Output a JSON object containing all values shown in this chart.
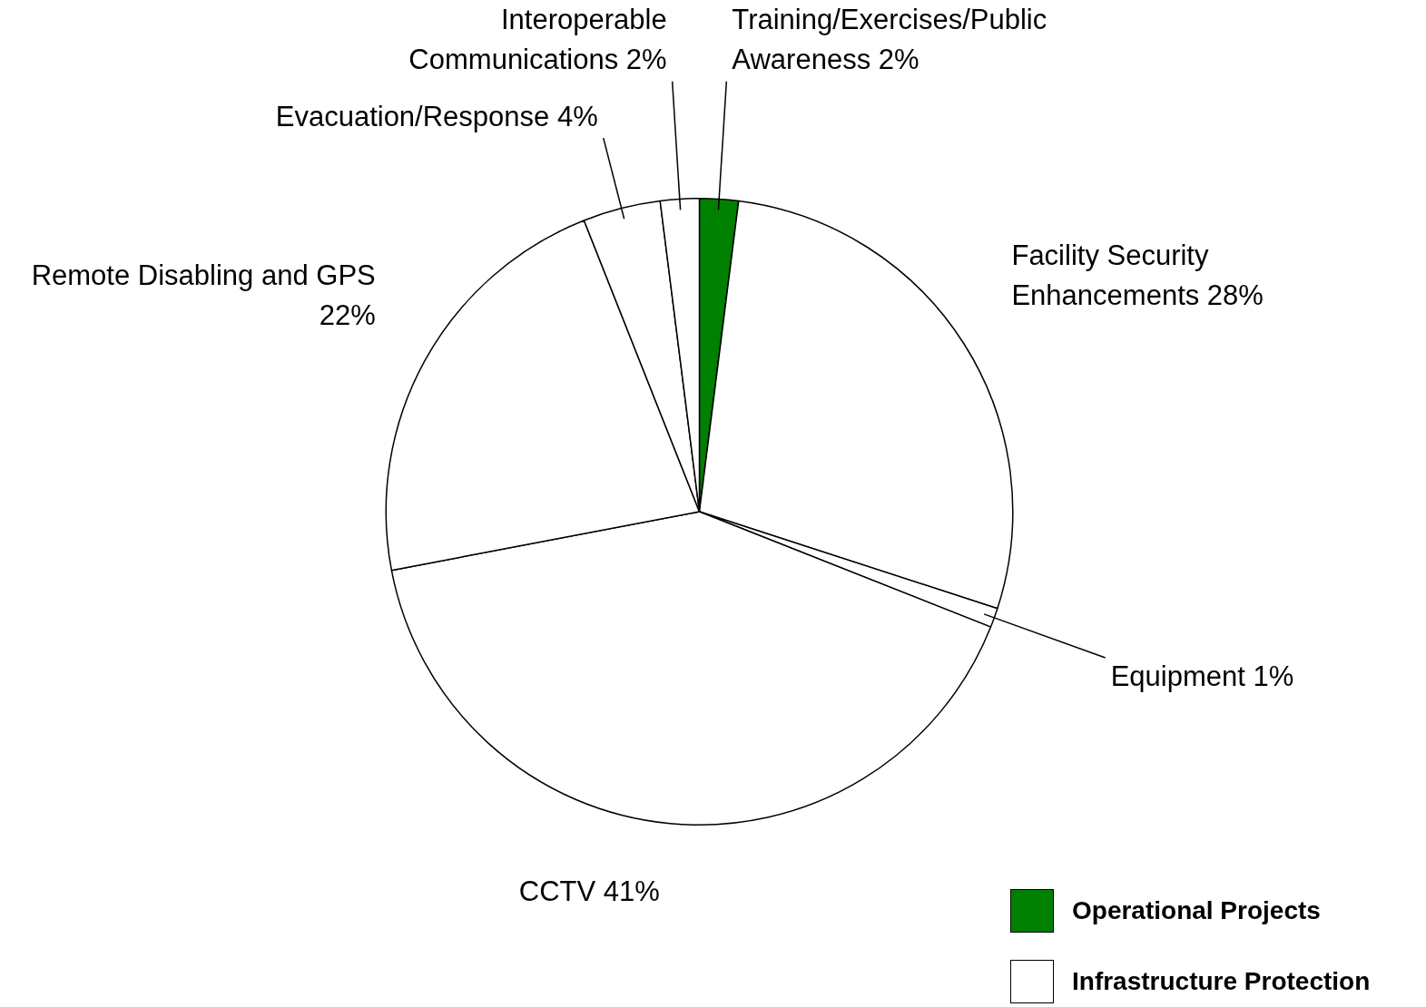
{
  "chart_data": {
    "type": "pie",
    "categories": [
      "Training/Exercises/Public Awareness",
      "Facility Security Enhancements",
      "Equipment",
      "CCTV",
      "Remote Disabling and GPS",
      "Evacuation/Response",
      "Interoperable Communications"
    ],
    "values": [
      2,
      28,
      1,
      41,
      22,
      4,
      2
    ],
    "value_labels": [
      "2%",
      "28%",
      "1%",
      "41%",
      "22%",
      "4%",
      "2%"
    ],
    "colors": [
      "#008000",
      "#ffffff",
      "#ffffff",
      "#ffffff",
      "#ffffff",
      "#ffffff",
      "#ffffff"
    ],
    "annotations": [
      "Operational Projects",
      "Infrastructure Protection"
    ]
  }
}
